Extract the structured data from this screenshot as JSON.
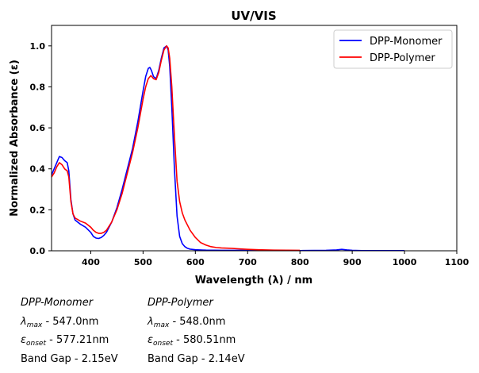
{
  "chart_data": {
    "type": "line",
    "title": "UV/VIS",
    "xlabel": "Wavelength (λ) / nm",
    "ylabel": "Normalized Absorbance (ε)",
    "xlim": [
      325,
      1100
    ],
    "ylim": [
      0,
      1.1
    ],
    "xticks": [
      400,
      500,
      600,
      700,
      800,
      900,
      1000,
      1100
    ],
    "yticks": [
      0.0,
      0.2,
      0.4,
      0.6,
      0.8,
      1.0
    ],
    "grid": false,
    "legend_position": "top-right",
    "series": [
      {
        "name": "DPP-Monomer",
        "color": "#0000ff",
        "x": [
          325,
          330,
          335,
          340,
          345,
          350,
          355,
          358,
          362,
          366,
          370,
          380,
          390,
          400,
          405,
          410,
          415,
          420,
          425,
          430,
          440,
          450,
          460,
          470,
          480,
          490,
          500,
          505,
          510,
          513,
          516,
          520,
          525,
          530,
          535,
          540,
          545,
          548,
          551,
          555,
          560,
          565,
          570,
          575,
          580,
          585,
          590,
          600,
          620,
          650,
          700,
          750,
          800,
          850,
          870,
          880,
          890,
          900,
          920,
          1000
        ],
        "y": [
          0.37,
          0.4,
          0.43,
          0.46,
          0.455,
          0.44,
          0.43,
          0.39,
          0.25,
          0.18,
          0.15,
          0.13,
          0.115,
          0.09,
          0.07,
          0.062,
          0.06,
          0.065,
          0.075,
          0.09,
          0.14,
          0.21,
          0.3,
          0.4,
          0.5,
          0.63,
          0.78,
          0.85,
          0.89,
          0.895,
          0.88,
          0.85,
          0.84,
          0.88,
          0.94,
          0.99,
          1.0,
          0.98,
          0.9,
          0.7,
          0.4,
          0.17,
          0.07,
          0.035,
          0.02,
          0.012,
          0.008,
          0.005,
          0.003,
          0.002,
          0.002,
          0.001,
          0.001,
          0.002,
          0.004,
          0.007,
          0.004,
          0.002,
          0.001,
          0.001
        ]
      },
      {
        "name": "DPP-Polymer",
        "color": "#ff0000",
        "x": [
          325,
          330,
          335,
          340,
          345,
          350,
          355,
          358,
          362,
          366,
          370,
          380,
          390,
          400,
          405,
          410,
          415,
          420,
          425,
          430,
          440,
          450,
          460,
          470,
          480,
          490,
          500,
          505,
          510,
          515,
          520,
          525,
          530,
          535,
          540,
          545,
          548,
          551,
          555,
          560,
          565,
          570,
          575,
          580,
          590,
          600,
          610,
          620,
          630,
          640,
          650,
          660,
          670,
          680,
          700,
          720,
          750,
          800
        ],
        "y": [
          0.36,
          0.38,
          0.41,
          0.43,
          0.42,
          0.4,
          0.39,
          0.36,
          0.24,
          0.18,
          0.16,
          0.145,
          0.135,
          0.115,
          0.1,
          0.09,
          0.085,
          0.085,
          0.09,
          0.1,
          0.14,
          0.2,
          0.28,
          0.38,
          0.48,
          0.6,
          0.74,
          0.8,
          0.84,
          0.855,
          0.84,
          0.835,
          0.87,
          0.93,
          0.98,
          1.0,
          0.99,
          0.94,
          0.8,
          0.56,
          0.34,
          0.24,
          0.185,
          0.15,
          0.1,
          0.065,
          0.04,
          0.028,
          0.02,
          0.016,
          0.014,
          0.013,
          0.012,
          0.01,
          0.007,
          0.005,
          0.003,
          0.002
        ]
      }
    ]
  },
  "info": {
    "monomer": {
      "name": "DPP-Monomer",
      "lmax_sym": "λ",
      "lmax_sub": "max",
      "lmax_val": " - 547.0nm",
      "onset_sym": "ε",
      "onset_sub": "onset",
      "onset_val": " - 577.21nm",
      "bandgap": "Band Gap - 2.15eV"
    },
    "polymer": {
      "name": "DPP-Polymer",
      "lmax_sym": "λ",
      "lmax_sub": "max",
      "lmax_val": " - 548.0nm",
      "onset_sym": "ε",
      "onset_sub": "onset",
      "onset_val": " - 580.51nm",
      "bandgap": "Band Gap - 2.14eV"
    }
  }
}
